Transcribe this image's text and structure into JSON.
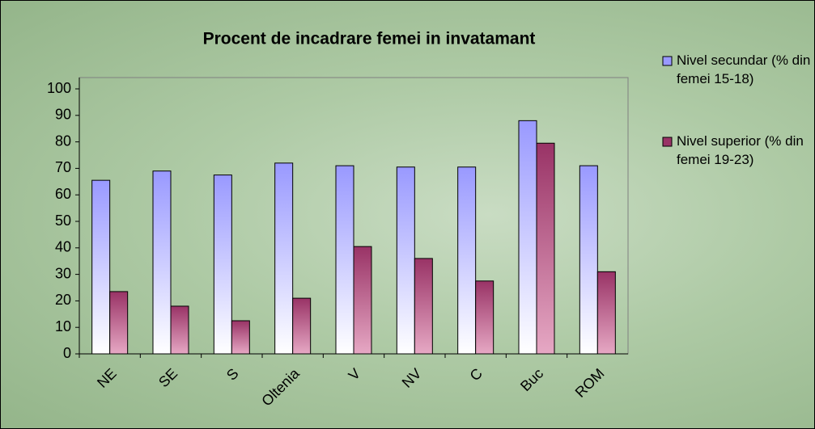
{
  "chart_data": {
    "type": "bar",
    "title": "Procent de incadrare femei in invatamant",
    "categories": [
      "NE",
      "SE",
      "S",
      "Oltenia",
      "V",
      "NV",
      "C",
      "Buc",
      "ROM"
    ],
    "series": [
      {
        "name": "Nivel secundar (% din femei 15-18)",
        "color": "#9999ff",
        "values": [
          65.5,
          69,
          67.5,
          72,
          71,
          70.5,
          70.5,
          88,
          71
        ]
      },
      {
        "name": "Nivel superior (% din femei 19-23)",
        "color": "#993366",
        "values": [
          23.5,
          18,
          12.5,
          21,
          40.5,
          36,
          27.5,
          79.5,
          31
        ]
      }
    ],
    "ylim": [
      0,
      100
    ],
    "yticks": [
      0,
      10,
      20,
      30,
      40,
      50,
      60,
      70,
      80,
      90,
      100
    ],
    "grid": false,
    "legend": "right"
  }
}
